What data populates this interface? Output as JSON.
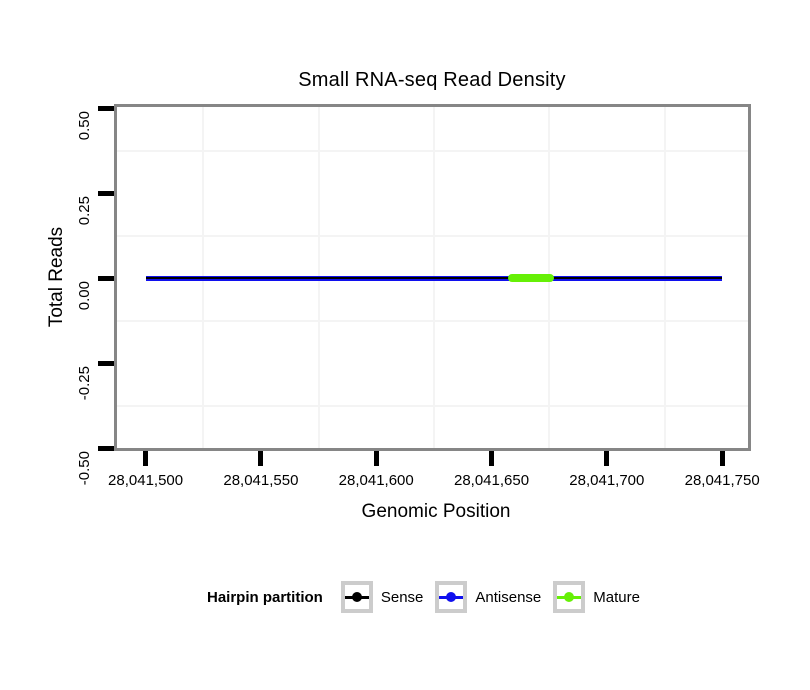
{
  "chart": {
    "title": "Small RNA-seq Read Density",
    "x_label": "Genomic Position",
    "y_label": "Total Reads"
  },
  "chart_data": {
    "type": "line",
    "title": "Small RNA-seq Read Density",
    "xlabel": "Genomic Position",
    "ylabel": "Total Reads",
    "x_domain": [
      28041487.6,
      28041761.2
    ],
    "y_domain": [
      -0.5,
      0.5
    ],
    "x_ticks": [
      {
        "value": 28041500,
        "label": "28,041,500"
      },
      {
        "value": 28041550,
        "label": "28,041,550"
      },
      {
        "value": 28041600,
        "label": "28,041,600"
      },
      {
        "value": 28041650,
        "label": "28,041,650"
      },
      {
        "value": 28041700,
        "label": "28,041,700"
      },
      {
        "value": 28041750,
        "label": "28,041,750"
      }
    ],
    "y_ticks": [
      {
        "value": 0.5,
        "label": "0.50"
      },
      {
        "value": 0.25,
        "label": "0.25"
      },
      {
        "value": 0,
        "label": "0.00"
      },
      {
        "value": -0.25,
        "label": "-0.25"
      },
      {
        "value": -0.5,
        "label": "-0.50"
      }
    ],
    "grid": "minor-gridlines-only",
    "legend_position": "bottom",
    "series": [
      {
        "name": "Sense",
        "color": "#000000",
        "y": 0,
        "x_start": 28041500,
        "x_end": 28041750,
        "thickness": 2.5,
        "z": 2,
        "rounded": false
      },
      {
        "name": "Antisense",
        "color": "#1010EE",
        "y": 0,
        "x_start": 28041500,
        "x_end": 28041750,
        "thickness": 5,
        "z": 1,
        "rounded": false
      },
      {
        "name": "Mature",
        "color": "#66F006",
        "y": 0,
        "x_start": 28041657,
        "x_end": 28041677,
        "thickness": 8,
        "z": 3,
        "rounded": true
      }
    ]
  },
  "legend": {
    "title": "Hairpin partition",
    "items": [
      {
        "label": "Sense",
        "color": "#000000"
      },
      {
        "label": "Antisense",
        "color": "#1010EE"
      },
      {
        "label": "Mature",
        "color": "#66F006"
      }
    ]
  }
}
